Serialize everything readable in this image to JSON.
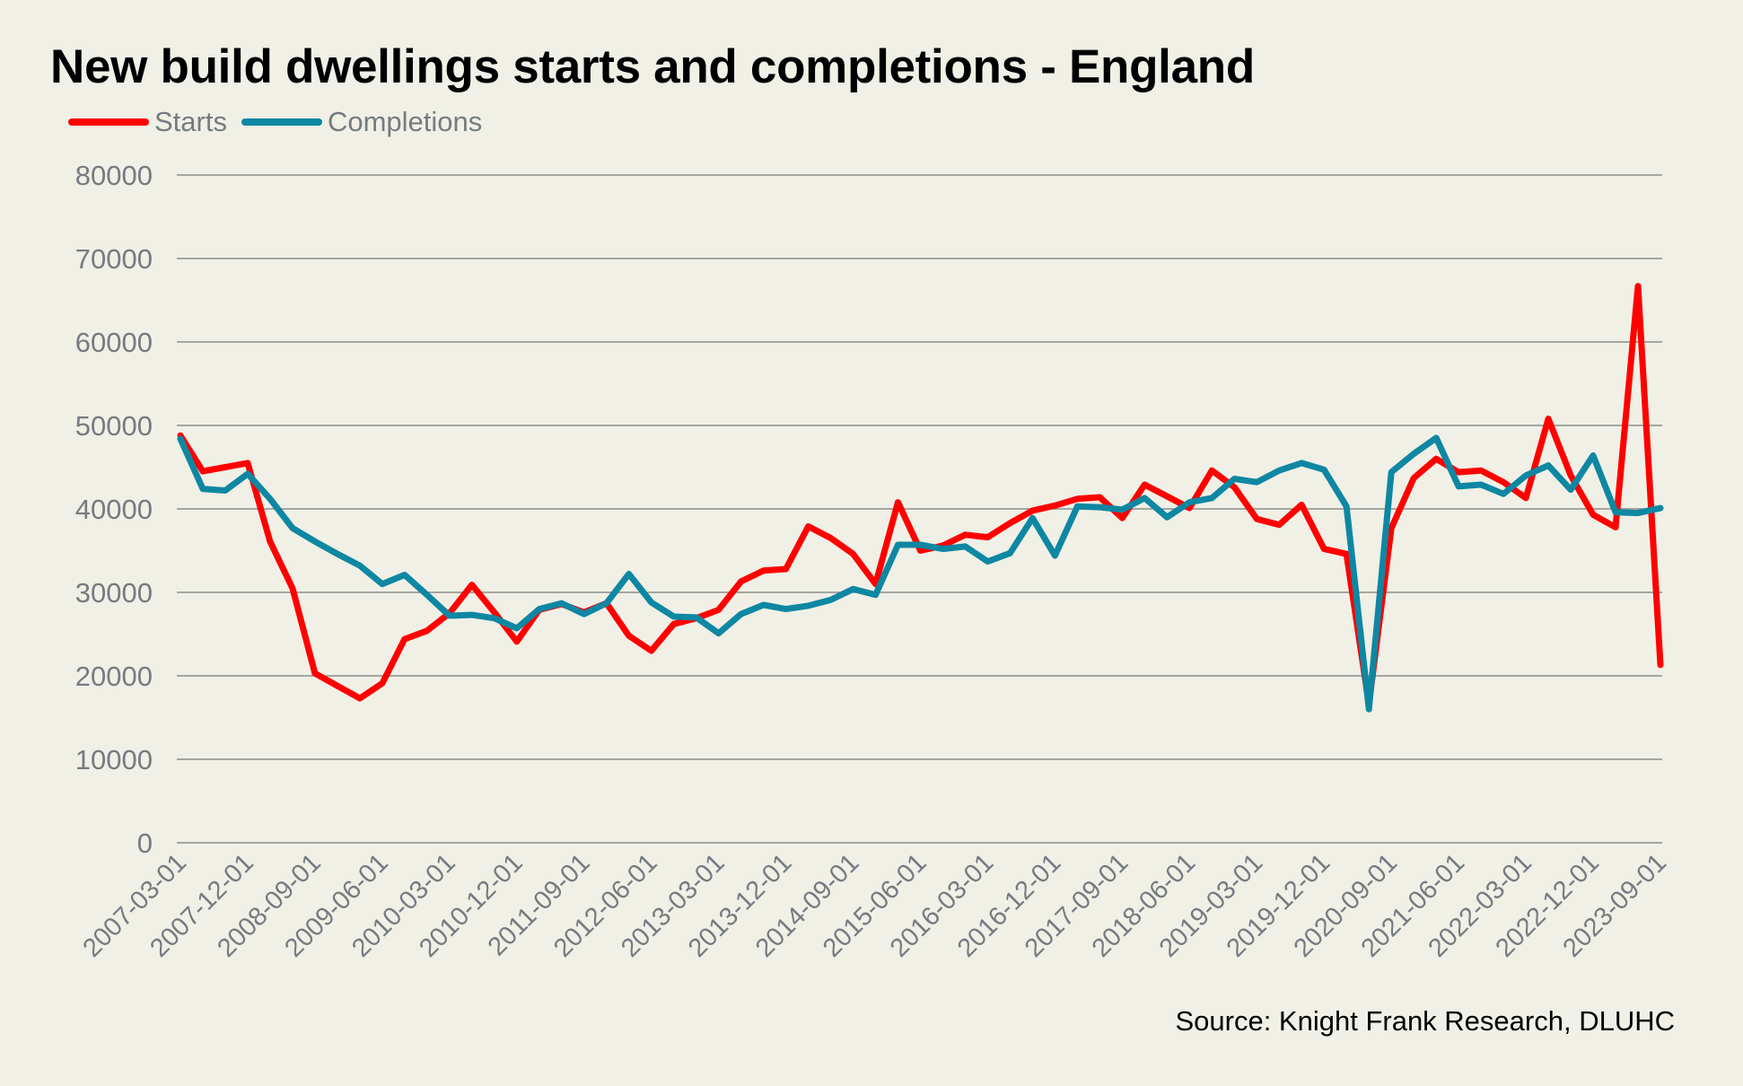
{
  "chart_data": {
    "type": "line",
    "title": "New build dwellings starts and completions - England",
    "xlabel": "",
    "ylabel": "",
    "ylim": [
      0,
      80000
    ],
    "yticks": [
      0,
      10000,
      20000,
      30000,
      40000,
      50000,
      60000,
      70000,
      80000
    ],
    "grid": true,
    "legend_position": "top-left",
    "x": [
      "2007-03-01",
      "2007-06-01",
      "2007-09-01",
      "2007-12-01",
      "2008-03-01",
      "2008-06-01",
      "2008-09-01",
      "2008-12-01",
      "2009-03-01",
      "2009-06-01",
      "2009-09-01",
      "2009-12-01",
      "2010-03-01",
      "2010-06-01",
      "2010-09-01",
      "2010-12-01",
      "2011-03-01",
      "2011-06-01",
      "2011-09-01",
      "2011-12-01",
      "2012-03-01",
      "2012-06-01",
      "2012-09-01",
      "2012-12-01",
      "2013-03-01",
      "2013-06-01",
      "2013-09-01",
      "2013-12-01",
      "2014-03-01",
      "2014-06-01",
      "2014-09-01",
      "2014-12-01",
      "2015-03-01",
      "2015-06-01",
      "2015-09-01",
      "2015-12-01",
      "2016-03-01",
      "2016-06-01",
      "2016-09-01",
      "2016-12-01",
      "2017-03-01",
      "2017-06-01",
      "2017-09-01",
      "2017-12-01",
      "2018-03-01",
      "2018-06-01",
      "2018-09-01",
      "2018-12-01",
      "2019-03-01",
      "2019-06-01",
      "2019-09-01",
      "2019-12-01",
      "2020-03-01",
      "2020-06-01",
      "2020-09-01",
      "2020-12-01",
      "2021-03-01",
      "2021-06-01",
      "2021-09-01",
      "2021-12-01",
      "2022-03-01",
      "2022-06-01",
      "2022-09-01",
      "2022-12-01",
      "2023-03-01",
      "2023-06-01",
      "2023-09-01"
    ],
    "xtick_labels": [
      "2007-03-01",
      "2007-12-01",
      "2008-09-01",
      "2009-06-01",
      "2010-03-01",
      "2010-12-01",
      "2011-09-01",
      "2012-06-01",
      "2013-03-01",
      "2013-12-01",
      "2014-09-01",
      "2015-06-01",
      "2016-03-01",
      "2016-12-01",
      "2017-09-01",
      "2018-06-01",
      "2019-03-01",
      "2019-12-01",
      "2020-09-01",
      "2021-06-01",
      "2022-03-01",
      "2022-12-01",
      "2023-09-01"
    ],
    "series": [
      {
        "name": "Starts",
        "color": "#ff0000",
        "values": [
          48800,
          44500,
          45000,
          45500,
          36100,
          30500,
          20300,
          18800,
          17300,
          19100,
          24400,
          25400,
          27500,
          30900,
          27600,
          24100,
          27900,
          28600,
          27600,
          28700,
          24800,
          23000,
          26200,
          26900,
          27900,
          31300,
          32600,
          32800,
          37900,
          36500,
          34600,
          31000,
          40800,
          35000,
          35600,
          36900,
          36600,
          38300,
          39800,
          40400,
          41200,
          41400,
          38900,
          42900,
          41500,
          40100,
          44600,
          42600,
          38800,
          38100,
          40500,
          35200,
          34600,
          16600,
          37700,
          43700,
          46000,
          44400,
          44600,
          43200,
          41300,
          50800,
          44000,
          39300,
          37800,
          66700,
          21300
        ]
      },
      {
        "name": "Completions",
        "color": "#0e87a3",
        "values": [
          48400,
          42400,
          42200,
          44200,
          41200,
          37700,
          36100,
          34600,
          33200,
          31000,
          32100,
          29700,
          27200,
          27300,
          26900,
          25700,
          28000,
          28700,
          27400,
          28700,
          32200,
          28800,
          27100,
          27000,
          25100,
          27400,
          28500,
          28000,
          28400,
          29100,
          30400,
          29700,
          35700,
          35700,
          35200,
          35500,
          33700,
          34700,
          38900,
          34400,
          40300,
          40200,
          39900,
          41300,
          39000,
          40800,
          41300,
          43600,
          43200,
          44600,
          45500,
          44700,
          40300,
          16000,
          44400,
          46600,
          48500,
          42700,
          42900,
          41800,
          44000,
          45200,
          42300,
          46400,
          39600,
          39500,
          40100
        ]
      }
    ],
    "source": "Source: Knight Frank Research,  DLUHC"
  }
}
